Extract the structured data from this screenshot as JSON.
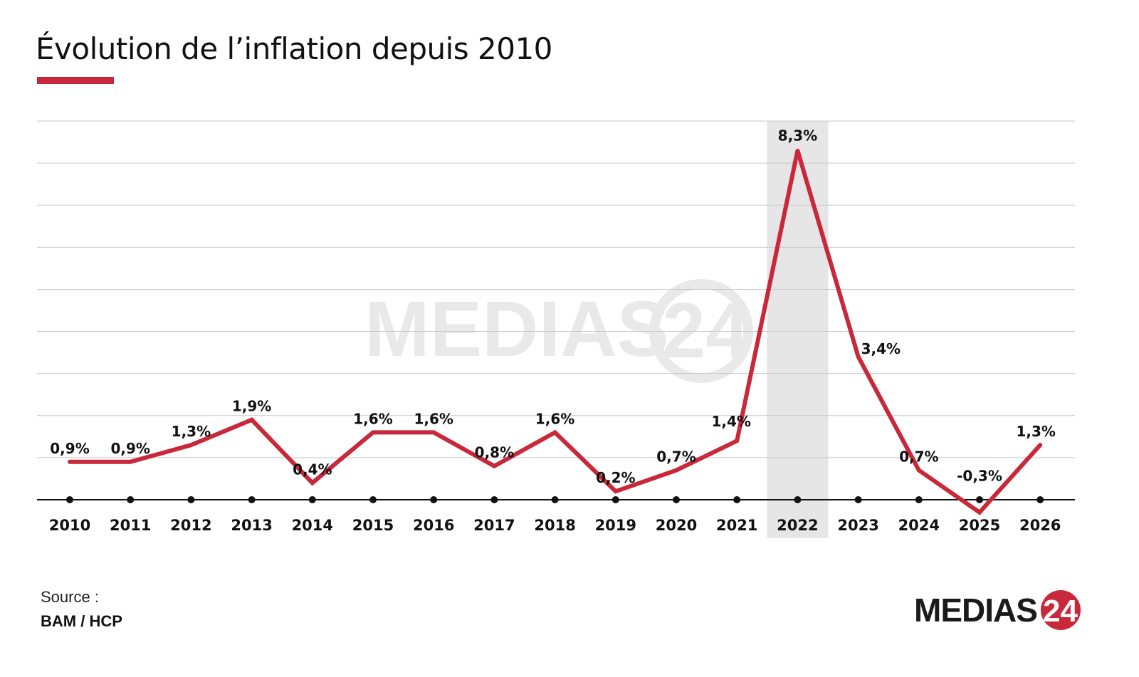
{
  "title": "Évolution de l’inflation depuis 2010",
  "source": {
    "label": "Source :",
    "value": "BAM / HCP"
  },
  "logo": {
    "text": "MEDIAS",
    "number": "24"
  },
  "colors": {
    "line": "#c8283a",
    "accent": "#c8283a",
    "highlight": "#e6e6e6",
    "grid": "#c9c9c9",
    "axis": "#111111"
  },
  "chart_data": {
    "type": "line",
    "x": [
      "2010",
      "2011",
      "2012",
      "2013",
      "2014",
      "2015",
      "2016",
      "2017",
      "2018",
      "2019",
      "2020",
      "2021",
      "2022",
      "2023",
      "2024",
      "2025",
      "2026"
    ],
    "values": [
      0.9,
      0.9,
      1.3,
      1.9,
      0.4,
      1.6,
      1.6,
      0.8,
      1.6,
      0.2,
      0.7,
      1.4,
      8.3,
      3.4,
      0.7,
      -0.3,
      1.3
    ],
    "labels": [
      "0,9%",
      "0,9%",
      "1,3%",
      "1,9%",
      "0,4%",
      "1,6%",
      "1,6%",
      "0,8%",
      "1,6%",
      "0,2%",
      "0,7%",
      "1,4%",
      "8,3%",
      "3,4%",
      "0,7%",
      "-0,3%",
      "1,3%"
    ],
    "highlight": "2022",
    "ylim": [
      0,
      9
    ],
    "grid": true,
    "legend": "none"
  }
}
